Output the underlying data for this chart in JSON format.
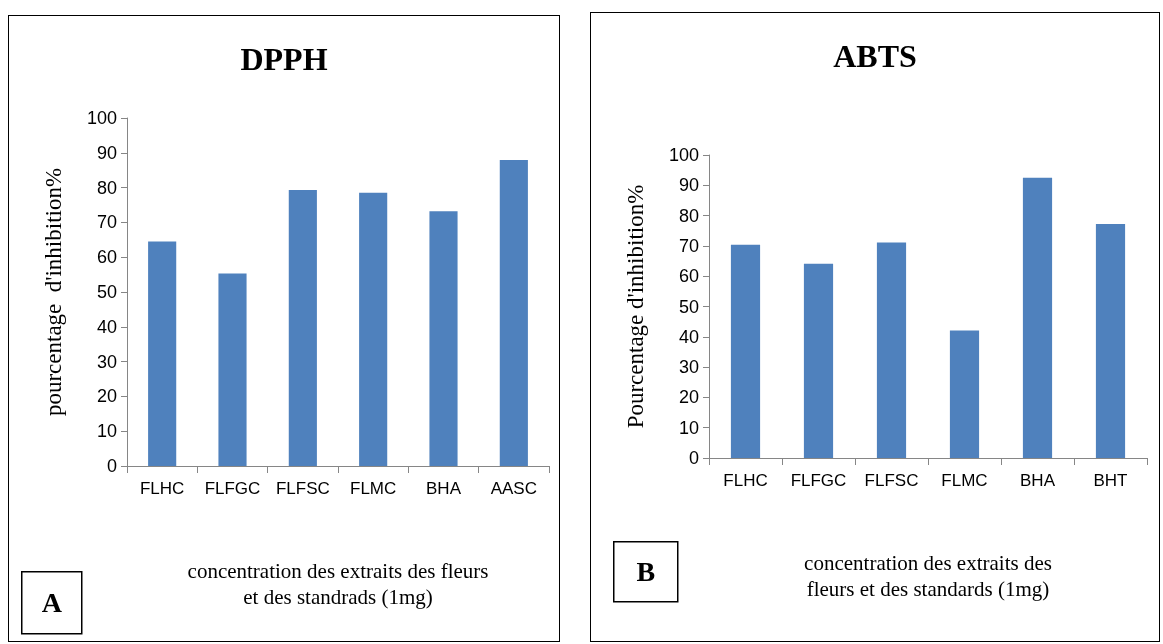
{
  "chart_data": [
    {
      "type": "bar",
      "title": "DPPH",
      "ylabel": "pourcentage  d'inhibition%",
      "xlabel": "concentration des extraits des fleurs et des standrads (1mg)",
      "categories": [
        "FLHC",
        "FLFGC",
        "FLFSC",
        "FLMC",
        "BHA",
        "AASC"
      ],
      "values": [
        64.5,
        55.3,
        79.3,
        78.5,
        73.2,
        87.9
      ],
      "color": "#4f81bd",
      "ylim": [
        0,
        100
      ],
      "yticks": [
        0,
        10,
        20,
        30,
        40,
        50,
        60,
        70,
        80,
        90,
        100
      ],
      "grid": false,
      "annotations": [
        "A"
      ]
    },
    {
      "type": "bar",
      "title": "ABTS",
      "ylabel": "Pourcentage d'inhibition%",
      "xlabel": "concentration des extraits des fleurs et des standards (1mg)",
      "categories": [
        "FLHC",
        "FLFGC",
        "FLFSC",
        "FLMC",
        "BHA",
        "BHT"
      ],
      "values": [
        70.4,
        64.1,
        71.1,
        42.1,
        92.5,
        77.2
      ],
      "color": "#4f81bd",
      "ylim": [
        0,
        100
      ],
      "yticks": [
        0,
        10,
        20,
        30,
        40,
        50,
        60,
        70,
        80,
        90,
        100
      ],
      "grid": false,
      "annotations": [
        "B"
      ]
    }
  ]
}
